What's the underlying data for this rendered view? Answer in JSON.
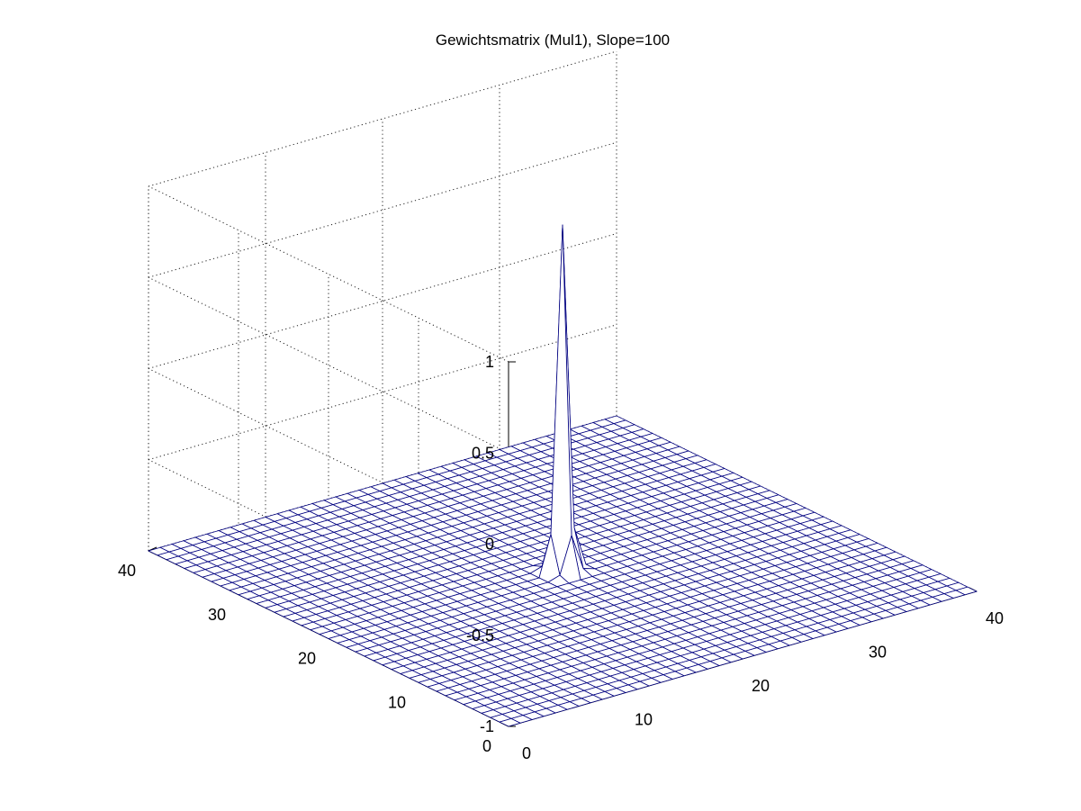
{
  "chart_data": {
    "type": "surface",
    "title": "Gewichtsmatrix (Mul1), Slope=100",
    "xlabel": "",
    "ylabel": "",
    "zlabel": "",
    "grid": true,
    "xlim": [
      0,
      40
    ],
    "ylim": [
      0,
      40
    ],
    "zlim": [
      -1,
      1
    ],
    "x_ticks": [
      "0",
      "10",
      "20",
      "30",
      "40"
    ],
    "y_ticks": [
      "0",
      "10",
      "20",
      "30",
      "40"
    ],
    "z_ticks": [
      "-1",
      "-0.5",
      "0",
      "0.5",
      "1"
    ],
    "mesh_size": 40,
    "baseline_value": -1,
    "peak": {
      "x": 20,
      "y": 20,
      "value": 0.9
    },
    "peak_neighbors": {
      "orthogonal": -0.78,
      "diagonal": -0.98
    },
    "line_color": "#000080",
    "face_color": "#ffffff"
  }
}
